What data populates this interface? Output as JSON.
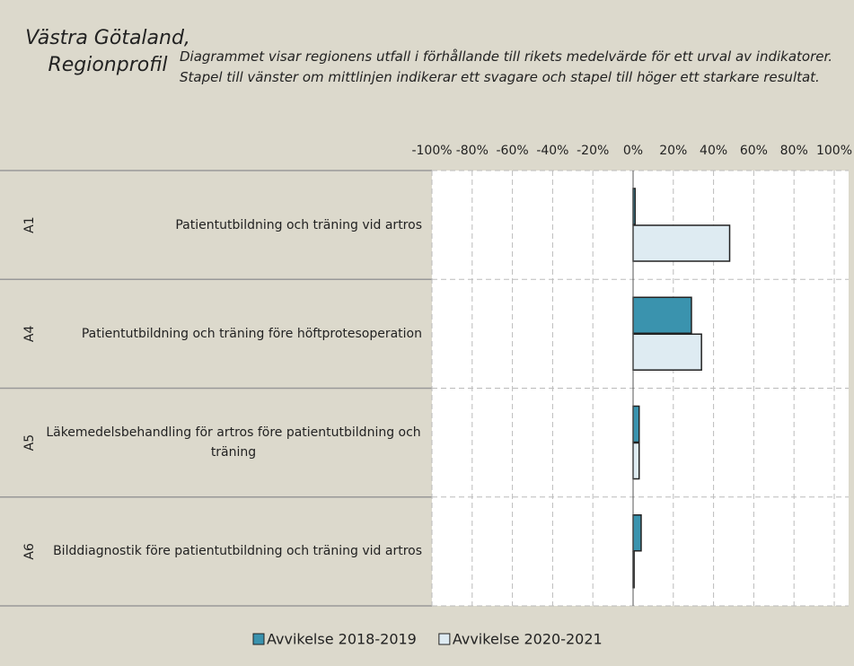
{
  "chart_data": {
    "type": "hbar",
    "title": "Västra Götaland, Regionprofil",
    "subtitle": "Diagrammet visar regionens utfall i förhållande till rikets medelvärde för ett urval av indikatorer. Stapel till vänster om mittlinjen indikerar ett svagare och stapel till höger ett starkare resultat.",
    "codes": [
      "A1",
      "A4",
      "A5",
      "A6"
    ],
    "categories": [
      "Patientutbildning och träning vid artros",
      "Patientutbildning och träning före höftprotesoperation",
      "Läkemedelsbehandling för artros före patientutbildning och träning",
      "Bilddiagnostik före patientutbildning och träning vid artros"
    ],
    "series": [
      {
        "name": "Avvikelse 2018-2019",
        "color": "#3a93ae",
        "values": [
          1,
          29,
          3,
          4
        ]
      },
      {
        "name": "Avvikelse 2020-2021",
        "color": "#deebf2",
        "values": [
          48,
          34,
          3,
          0.5
        ]
      }
    ],
    "xlim": [
      -100,
      100
    ],
    "xticks": [
      {
        "value": -100,
        "label": "-100%"
      },
      {
        "value": -80,
        "label": "-80%"
      },
      {
        "value": -60,
        "label": "-60%"
      },
      {
        "value": -40,
        "label": "-40%"
      },
      {
        "value": -20,
        "label": "-20%"
      },
      {
        "value": 0,
        "label": "0%"
      },
      {
        "value": 20,
        "label": "20%"
      },
      {
        "value": 40,
        "label": "40%"
      },
      {
        "value": 60,
        "label": "60%"
      },
      {
        "value": 80,
        "label": "80%"
      },
      {
        "value": 100,
        "label": "100%"
      }
    ],
    "grid": true
  }
}
